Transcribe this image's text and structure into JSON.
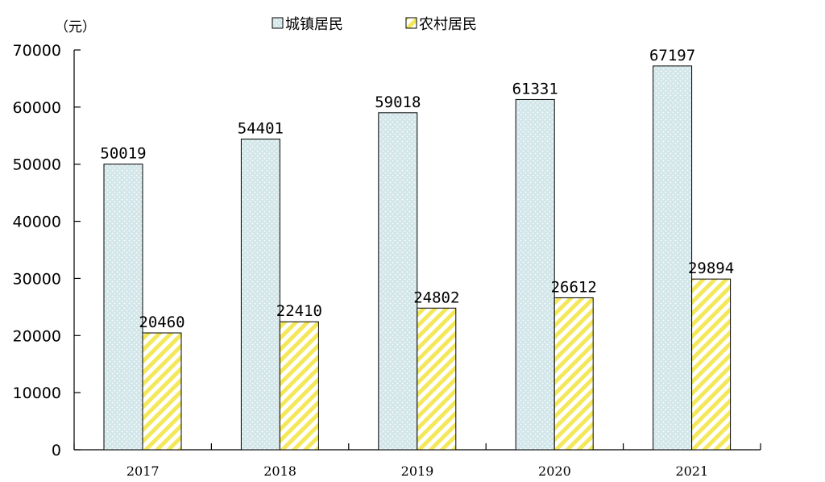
{
  "chart_data": {
    "type": "bar",
    "unit": "（元）",
    "categories": [
      "2017",
      "2018",
      "2019",
      "2020",
      "2021"
    ],
    "series": [
      {
        "name": "城镇居民",
        "values": [
          50019,
          54401,
          59018,
          61331,
          67197
        ],
        "color": "#cfe3e6",
        "pattern": "dots"
      },
      {
        "name": "农村居民",
        "values": [
          20460,
          22410,
          24802,
          26612,
          29894
        ],
        "color": "#fff39a",
        "pattern": "diagonal-stripes"
      }
    ],
    "yticks": [
      "0",
      "10000",
      "20000",
      "30000",
      "40000",
      "50000",
      "60000",
      "70000"
    ],
    "ylim": [
      0,
      70000
    ],
    "grid": false,
    "legend": "top-center"
  }
}
